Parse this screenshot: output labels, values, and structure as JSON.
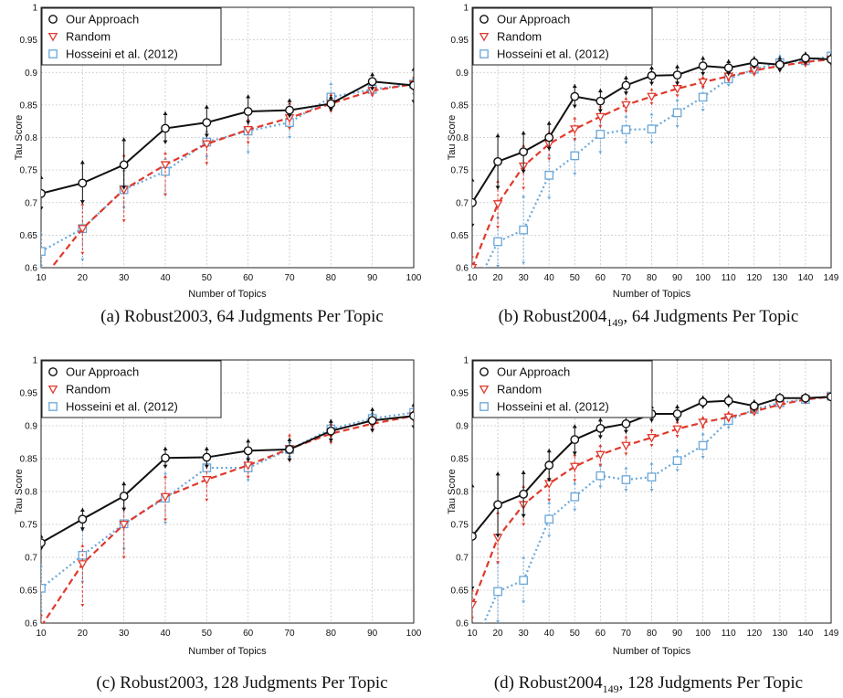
{
  "colors": {
    "our_approach": "#111111",
    "random": "#e0392c",
    "hosseini": "#6aa7d8",
    "grid": "#c8c8c8"
  },
  "chart_data": [
    {
      "type": "line",
      "caption": "(a) Robust2003, 64 Judgments Per Topic",
      "xlabel": "Number of Topics",
      "ylabel": "Tau Score",
      "x": [
        10,
        20,
        30,
        40,
        50,
        60,
        70,
        80,
        90,
        100
      ],
      "x_ticks": [
        "10",
        "20",
        "30",
        "40",
        "50",
        "60",
        "70",
        "80",
        "90",
        "100"
      ],
      "ylim": [
        0.6,
        1
      ],
      "y_ticks": [
        "0.6",
        "0.65",
        "0.7",
        "0.75",
        "0.8",
        "0.85",
        "0.9",
        "0.95",
        "1"
      ],
      "grid": true,
      "legend": "top-left",
      "series": [
        {
          "name": "Our Approach",
          "marker": "circle",
          "line": "solid",
          "values": [
            0.714,
            0.73,
            0.758,
            0.814,
            0.823,
            0.84,
            0.842,
            0.852,
            0.886,
            0.88
          ],
          "err_low": [
            0.688,
            0.698,
            0.72,
            0.79,
            0.8,
            0.82,
            0.83,
            0.84,
            0.872,
            0.852
          ],
          "err_high": [
            0.742,
            0.765,
            0.8,
            0.84,
            0.85,
            0.866,
            0.86,
            0.865,
            0.9,
            0.908
          ]
        },
        {
          "name": "Random",
          "marker": "triangle-down",
          "line": "dashed",
          "values": [
            0.58,
            0.66,
            0.72,
            0.758,
            0.79,
            0.812,
            0.83,
            0.852,
            0.872,
            0.882
          ],
          "err_low": [
            0.56,
            0.62,
            0.67,
            0.71,
            0.758,
            0.79,
            0.812,
            0.838,
            0.862,
            0.87
          ],
          "err_high": [
            0.6,
            0.7,
            0.775,
            0.778,
            0.822,
            0.83,
            0.855,
            0.868,
            0.886,
            0.895
          ]
        },
        {
          "name": "Hosseini et al. (2012)",
          "marker": "square",
          "line": "dotted",
          "values": [
            0.625,
            0.66,
            0.72,
            0.748,
            0.793,
            0.81,
            0.823,
            0.862,
            0.874,
            0.882
          ],
          "err_low": [
            0.6,
            0.61,
            0.69,
            0.71,
            0.768,
            0.775,
            0.798,
            0.842,
            0.864,
            0.864
          ],
          "err_high": [
            0.655,
            0.705,
            0.752,
            0.77,
            0.812,
            0.84,
            0.845,
            0.885,
            0.886,
            0.893
          ]
        }
      ]
    },
    {
      "type": "line",
      "caption": "(b) Robust2004",
      "caption_sub": "149",
      "caption_suffix": ", 64 Judgments Per Topic",
      "xlabel": "Number of Topics",
      "ylabel": "Tau Score",
      "x": [
        10,
        20,
        30,
        40,
        50,
        60,
        70,
        80,
        90,
        100,
        110,
        120,
        130,
        140,
        149
      ],
      "x_ticks": [
        "10",
        "20",
        "30",
        "40",
        "50",
        "60",
        "70",
        "80",
        "90",
        "100",
        "110",
        "120",
        "130",
        "140",
        "149"
      ],
      "ylim": [
        0.6,
        1
      ],
      "y_ticks": [
        "0.6",
        "0.65",
        "0.7",
        "0.75",
        "0.8",
        "0.85",
        "0.9",
        "0.95",
        "1"
      ],
      "grid": true,
      "legend": "top-left",
      "series": [
        {
          "name": "Our Approach",
          "marker": "circle",
          "line": "solid",
          "values": [
            0.7,
            0.763,
            0.778,
            0.8,
            0.863,
            0.856,
            0.88,
            0.895,
            0.896,
            0.91,
            0.907,
            0.915,
            0.912,
            0.922,
            0.92
          ],
          "err_low": [
            0.662,
            0.72,
            0.745,
            0.78,
            0.845,
            0.838,
            0.865,
            0.88,
            0.88,
            0.895,
            0.895,
            0.905,
            0.9,
            0.912,
            0.91
          ],
          "err_high": [
            0.738,
            0.806,
            0.81,
            0.825,
            0.882,
            0.875,
            0.895,
            0.91,
            0.912,
            0.925,
            0.92,
            0.925,
            0.925,
            0.932,
            0.93
          ]
        },
        {
          "name": "Random",
          "marker": "triangle-down",
          "line": "dashed",
          "values": [
            0.6,
            0.698,
            0.756,
            0.79,
            0.813,
            0.832,
            0.85,
            0.863,
            0.875,
            0.885,
            0.894,
            0.903,
            0.91,
            0.916,
            0.92
          ],
          "err_low": [
            0.58,
            0.66,
            0.72,
            0.765,
            0.795,
            0.815,
            0.838,
            0.85,
            0.862,
            0.875,
            0.885,
            0.894,
            0.902,
            0.908,
            0.912
          ],
          "err_high": [
            0.62,
            0.735,
            0.79,
            0.81,
            0.832,
            0.85,
            0.862,
            0.876,
            0.888,
            0.895,
            0.903,
            0.912,
            0.918,
            0.924,
            0.928
          ]
        },
        {
          "name": "Hosseini et al. (2012)",
          "marker": "square",
          "line": "dotted",
          "values": [
            0.56,
            0.64,
            0.658,
            0.742,
            0.772,
            0.805,
            0.812,
            0.813,
            0.838,
            0.862,
            0.89,
            0.905,
            0.915,
            0.918,
            0.925
          ],
          "err_low": [
            0.54,
            0.6,
            0.605,
            0.705,
            0.742,
            0.775,
            0.79,
            0.79,
            0.815,
            0.84,
            0.878,
            0.895,
            0.905,
            0.908,
            0.915
          ],
          "err_high": [
            0.58,
            0.68,
            0.712,
            0.775,
            0.8,
            0.835,
            0.835,
            0.838,
            0.86,
            0.88,
            0.905,
            0.915,
            0.928,
            0.928,
            0.935
          ]
        }
      ]
    },
    {
      "type": "line",
      "caption": "(c) Robust2003, 128 Judgments Per Topic",
      "xlabel": "Number of Topics",
      "ylabel": "Tau Score",
      "x": [
        10,
        20,
        30,
        40,
        50,
        60,
        70,
        80,
        90,
        100
      ],
      "x_ticks": [
        "10",
        "20",
        "30",
        "40",
        "50",
        "60",
        "70",
        "80",
        "90",
        "100"
      ],
      "ylim": [
        0.6,
        1
      ],
      "y_ticks": [
        "0.6",
        "0.65",
        "0.7",
        "0.75",
        "0.8",
        "0.85",
        "0.9",
        "0.95",
        "1"
      ],
      "grid": true,
      "legend": "top-left",
      "series": [
        {
          "name": "Our Approach",
          "marker": "circle",
          "line": "solid",
          "values": [
            0.722,
            0.758,
            0.793,
            0.851,
            0.852,
            0.862,
            0.864,
            0.892,
            0.908,
            0.915
          ],
          "err_low": [
            0.71,
            0.74,
            0.77,
            0.835,
            0.835,
            0.845,
            0.845,
            0.875,
            0.89,
            0.895
          ],
          "err_high": [
            0.735,
            0.775,
            0.815,
            0.868,
            0.868,
            0.88,
            0.882,
            0.91,
            0.928,
            0.935
          ]
        },
        {
          "name": "Random",
          "marker": "triangle-down",
          "line": "dashed",
          "values": [
            0.595,
            0.69,
            0.75,
            0.792,
            0.818,
            0.84,
            0.865,
            0.888,
            0.903,
            0.915
          ],
          "err_low": [
            0.575,
            0.625,
            0.698,
            0.755,
            0.785,
            0.82,
            0.845,
            0.872,
            0.89,
            0.905
          ],
          "err_high": [
            0.615,
            0.72,
            0.8,
            0.825,
            0.85,
            0.86,
            0.888,
            0.905,
            0.915,
            0.925
          ]
        },
        {
          "name": "Hosseini et al. (2012)",
          "marker": "square",
          "line": "dotted",
          "values": [
            0.653,
            0.703,
            0.751,
            0.79,
            0.836,
            0.836,
            0.864,
            0.895,
            0.911,
            0.92
          ],
          "err_low": [
            0.615,
            0.66,
            0.71,
            0.75,
            0.815,
            0.815,
            0.85,
            0.882,
            0.9,
            0.91
          ],
          "err_high": [
            0.69,
            0.745,
            0.79,
            0.83,
            0.855,
            0.855,
            0.878,
            0.908,
            0.922,
            0.932
          ]
        }
      ]
    },
    {
      "type": "line",
      "caption": "(d) Robust2004",
      "caption_sub": "149",
      "caption_suffix": ", 128 Judgments Per Topic",
      "xlabel": "Number of Topics",
      "ylabel": "Tau Score",
      "x": [
        10,
        20,
        30,
        40,
        50,
        60,
        70,
        80,
        90,
        100,
        110,
        120,
        130,
        140,
        149
      ],
      "x_ticks": [
        "10",
        "20",
        "30",
        "40",
        "50",
        "60",
        "70",
        "80",
        "90",
        "100",
        "110",
        "120",
        "130",
        "140",
        "149"
      ],
      "ylim": [
        0.6,
        1
      ],
      "y_ticks": [
        "0.6",
        "0.65",
        "0.7",
        "0.75",
        "0.8",
        "0.85",
        "0.9",
        "0.95",
        "1"
      ],
      "grid": true,
      "legend": "top-left",
      "series": [
        {
          "name": "Our Approach",
          "marker": "circle",
          "line": "solid",
          "values": [
            0.732,
            0.78,
            0.796,
            0.84,
            0.879,
            0.896,
            0.903,
            0.918,
            0.918,
            0.936,
            0.938,
            0.93,
            0.942,
            0.942,
            0.944
          ],
          "err_low": [
            0.65,
            0.73,
            0.76,
            0.815,
            0.855,
            0.88,
            0.888,
            0.905,
            0.905,
            0.926,
            0.928,
            0.92,
            0.935,
            0.935,
            0.938
          ],
          "err_high": [
            0.812,
            0.83,
            0.832,
            0.865,
            0.902,
            0.912,
            0.918,
            0.932,
            0.932,
            0.946,
            0.948,
            0.94,
            0.95,
            0.95,
            0.95
          ]
        },
        {
          "name": "Random",
          "marker": "triangle-down",
          "line": "dashed",
          "values": [
            0.628,
            0.73,
            0.78,
            0.812,
            0.838,
            0.856,
            0.87,
            0.882,
            0.895,
            0.905,
            0.913,
            0.922,
            0.932,
            0.94,
            0.944
          ],
          "err_low": [
            0.605,
            0.69,
            0.748,
            0.785,
            0.815,
            0.838,
            0.855,
            0.868,
            0.882,
            0.895,
            0.905,
            0.915,
            0.925,
            0.935,
            0.94
          ],
          "err_high": [
            0.652,
            0.77,
            0.81,
            0.838,
            0.858,
            0.872,
            0.885,
            0.896,
            0.908,
            0.915,
            0.922,
            0.93,
            0.94,
            0.946,
            0.948
          ]
        },
        {
          "name": "Hosseini et al. (2012)",
          "marker": "square",
          "line": "dotted",
          "values": [
            0.56,
            0.648,
            0.665,
            0.758,
            0.792,
            0.824,
            0.818,
            0.822,
            0.847,
            0.87,
            0.908,
            0.925,
            0.935,
            0.94,
            0.945
          ],
          "err_low": [
            0.54,
            0.6,
            0.63,
            0.73,
            0.77,
            0.805,
            0.8,
            0.8,
            0.83,
            0.85,
            0.895,
            0.918,
            0.928,
            0.934,
            0.94
          ],
          "err_high": [
            0.58,
            0.695,
            0.702,
            0.785,
            0.815,
            0.842,
            0.838,
            0.845,
            0.865,
            0.89,
            0.92,
            0.932,
            0.942,
            0.946,
            0.95
          ]
        }
      ]
    }
  ]
}
